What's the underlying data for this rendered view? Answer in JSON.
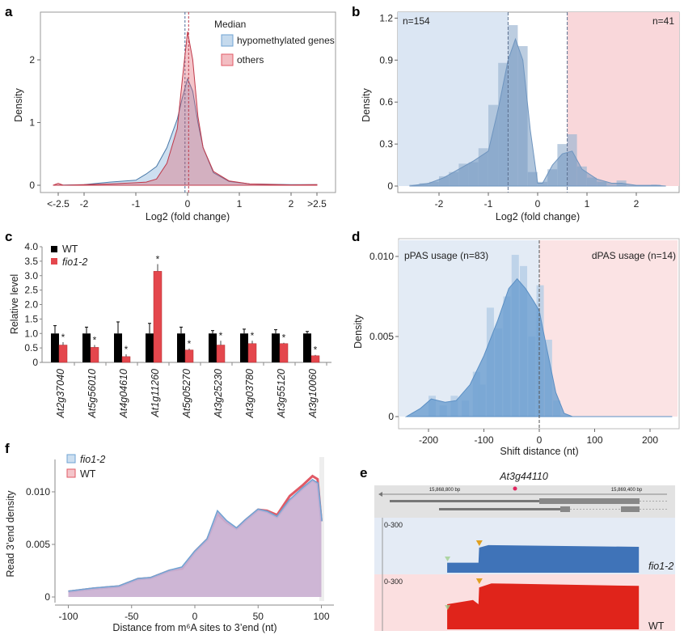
{
  "panel_labels": {
    "a": "a",
    "b": "b",
    "c": "c",
    "d": "d",
    "e": "e",
    "f": "f"
  },
  "colors": {
    "blue": "#6fa3d3",
    "red": "#e05a66",
    "purple": "#c9aed0",
    "blue_region": "#dbe6f3",
    "pink_region": "#f9d7da",
    "wt_bar": "#000000",
    "fio_bar": "#e4474d",
    "track_blue": "#3f73b8",
    "track_red": "#e0241b"
  },
  "chart_data": [
    {
      "id": "a",
      "type": "area",
      "xlabel": "Log2 (fold change)",
      "ylabel": "Density",
      "xticks": [
        "<-2.5",
        "-2",
        "-1",
        "0",
        "1",
        "2",
        ">2.5"
      ],
      "xtick_values": [
        -2.5,
        -2,
        -1,
        0,
        1,
        2,
        2.5
      ],
      "yticks": [
        "0",
        "1",
        "2"
      ],
      "ylim": [
        0,
        2.7
      ],
      "xlim": [
        -2.7,
        2.8
      ],
      "legend": {
        "title": "Median",
        "position": "top-right",
        "entries": [
          "hypomethylated genes",
          "others"
        ]
      },
      "series": [
        {
          "name": "hypomethylated genes",
          "color": "#6fa3d3",
          "median": -0.05,
          "points": [
            [
              -2.6,
              0
            ],
            [
              -2,
              0.01
            ],
            [
              -1.5,
              0.05
            ],
            [
              -1,
              0.08
            ],
            [
              -0.8,
              0.18
            ],
            [
              -0.6,
              0.3
            ],
            [
              -0.4,
              0.6
            ],
            [
              -0.2,
              1.05
            ],
            [
              -0.1,
              1.4
            ],
            [
              0,
              1.7
            ],
            [
              0.1,
              1.5
            ],
            [
              0.2,
              1.0
            ],
            [
              0.3,
              0.6
            ],
            [
              0.5,
              0.2
            ],
            [
              0.8,
              0.06
            ],
            [
              1.2,
              0.02
            ],
            [
              2,
              0.01
            ],
            [
              2.5,
              0.01
            ]
          ]
        },
        {
          "name": "others",
          "color": "#e05a66",
          "median": 0.02,
          "points": [
            [
              -2.6,
              0
            ],
            [
              -2.5,
              0.03
            ],
            [
              -2.4,
              0
            ],
            [
              -1.5,
              0.02
            ],
            [
              -1,
              0.04
            ],
            [
              -0.8,
              0.05
            ],
            [
              -0.6,
              0.1
            ],
            [
              -0.4,
              0.35
            ],
            [
              -0.2,
              0.9
            ],
            [
              -0.1,
              1.7
            ],
            [
              0,
              2.45
            ],
            [
              0.1,
              2.0
            ],
            [
              0.2,
              1.1
            ],
            [
              0.3,
              0.6
            ],
            [
              0.5,
              0.22
            ],
            [
              0.8,
              0.07
            ],
            [
              1.2,
              0.02
            ],
            [
              2,
              0.005
            ],
            [
              2.5,
              0.01
            ]
          ]
        }
      ]
    },
    {
      "id": "b",
      "type": "area",
      "xlabel": "Log2 (fold change)",
      "ylabel": "Density",
      "xticks": [
        "-2",
        "-1",
        "0",
        "1",
        "2"
      ],
      "xtick_values": [
        -2,
        -1,
        0,
        1,
        2
      ],
      "yticks": [
        "0",
        "0.3",
        "0.6",
        "0.9",
        "1.2"
      ],
      "ytick_values": [
        0,
        0.3,
        0.6,
        0.9,
        1.2
      ],
      "ylim": [
        0,
        1.25
      ],
      "xlim": [
        -2.85,
        2.85
      ],
      "thresholds": [
        -0.6,
        0.6
      ],
      "annotations": [
        "n=154",
        "n=41"
      ],
      "histogram": [
        [
          -2.5,
          0.01
        ],
        [
          -2.3,
          0.02
        ],
        [
          -2.1,
          0.03
        ],
        [
          -1.9,
          0.07
        ],
        [
          -1.7,
          0.1
        ],
        [
          -1.5,
          0.16
        ],
        [
          -1.3,
          0.17
        ],
        [
          -1.1,
          0.27
        ],
        [
          -0.9,
          0.58
        ],
        [
          -0.7,
          0.88
        ],
        [
          -0.5,
          1.15
        ],
        [
          -0.3,
          1.0
        ],
        [
          -0.1,
          0.1
        ],
        [
          0.1,
          0.03
        ],
        [
          0.3,
          0.12
        ],
        [
          0.5,
          0.3
        ],
        [
          0.7,
          0.37
        ],
        [
          0.9,
          0.14
        ],
        [
          1.1,
          0.06
        ],
        [
          1.3,
          0.03
        ],
        [
          1.7,
          0.04
        ],
        [
          2.4,
          0.01
        ]
      ],
      "density": [
        [
          -2.6,
          0
        ],
        [
          -2.2,
          0.02
        ],
        [
          -1.9,
          0.06
        ],
        [
          -1.6,
          0.12
        ],
        [
          -1.3,
          0.18
        ],
        [
          -1.0,
          0.25
        ],
        [
          -0.8,
          0.55
        ],
        [
          -0.6,
          0.9
        ],
        [
          -0.45,
          1.05
        ],
        [
          -0.3,
          0.9
        ],
        [
          -0.15,
          0.4
        ],
        [
          0,
          0.02
        ],
        [
          0.1,
          0.02
        ],
        [
          0.3,
          0.15
        ],
        [
          0.5,
          0.23
        ],
        [
          0.7,
          0.25
        ],
        [
          0.9,
          0.12
        ],
        [
          1.2,
          0.05
        ],
        [
          1.5,
          0.02
        ],
        [
          1.7,
          0.02
        ],
        [
          2,
          0.005
        ],
        [
          2.4,
          0.005
        ],
        [
          2.6,
          0
        ]
      ]
    },
    {
      "id": "c",
      "type": "bar",
      "ylabel": "Relative level",
      "yticks": [
        "0",
        "0.5",
        "1.0",
        "1.5",
        "2.0",
        "2.5",
        "3.0",
        "3.5",
        "4.0"
      ],
      "ylim": [
        0,
        4
      ],
      "categories": [
        "At2g37040",
        "At5g56010",
        "At4g04610",
        "At1g11260",
        "At5g05270",
        "At3g25230",
        "At3g03780",
        "At3g55120",
        "At3g10060"
      ],
      "legend": {
        "position": "top-left"
      },
      "series": [
        {
          "name": "WT",
          "values": [
            1,
            1,
            1,
            1,
            1,
            1,
            1,
            1,
            1
          ],
          "errors": [
            0.27,
            0.22,
            0.4,
            0.35,
            0.22,
            0.1,
            0.15,
            0.13,
            0.07
          ]
        },
        {
          "name": "fio1-2",
          "values": [
            0.6,
            0.52,
            0.2,
            3.15,
            0.43,
            0.6,
            0.65,
            0.65,
            0.23
          ],
          "errors": [
            0.1,
            0.08,
            0.08,
            0.25,
            0.05,
            0.15,
            0.1,
            0.03,
            0.03
          ],
          "significance": [
            "*",
            "*",
            "*",
            "*",
            "*",
            "*",
            "*",
            "*",
            "*"
          ]
        }
      ]
    },
    {
      "id": "d",
      "type": "area",
      "xlabel": "Shift distance (nt)",
      "ylabel": "Density",
      "xticks": [
        "-200",
        "-100",
        "0",
        "100",
        "200"
      ],
      "xtick_values": [
        -200,
        -100,
        0,
        100,
        200
      ],
      "yticks": [
        "0",
        "0.005",
        "0.010"
      ],
      "ytick_values": [
        0,
        0.005,
        0.01
      ],
      "ylim": [
        0,
        0.011
      ],
      "xlim": [
        -265,
        265
      ],
      "threshold": 0,
      "annotations": [
        "pPAS usage (n=83)",
        "dPAS usage (n=14)"
      ],
      "histogram": [
        [
          -195,
          0.0013
        ],
        [
          -175,
          0.0007
        ],
        [
          -155,
          0.0013
        ],
        [
          -135,
          0.001
        ],
        [
          -115,
          0.0028
        ],
        [
          -105,
          0.002
        ],
        [
          -90,
          0.0068
        ],
        [
          -75,
          0.0055
        ],
        [
          -60,
          0.0075
        ],
        [
          -45,
          0.0101
        ],
        [
          -30,
          0.0094
        ],
        [
          -15,
          0.005
        ],
        [
          0,
          0.0082
        ],
        [
          15,
          0.0048
        ],
        [
          30,
          0.001
        ]
      ],
      "density": [
        [
          -240,
          0
        ],
        [
          -215,
          0.0005
        ],
        [
          -195,
          0.0011
        ],
        [
          -170,
          0.0009
        ],
        [
          -150,
          0.001
        ],
        [
          -125,
          0.002
        ],
        [
          -100,
          0.0038
        ],
        [
          -75,
          0.006
        ],
        [
          -55,
          0.008
        ],
        [
          -40,
          0.0086
        ],
        [
          -25,
          0.008
        ],
        [
          -10,
          0.0072
        ],
        [
          0,
          0.0066
        ],
        [
          15,
          0.004
        ],
        [
          30,
          0.0015
        ],
        [
          45,
          0.0002
        ],
        [
          60,
          0
        ],
        [
          240,
          0
        ]
      ]
    },
    {
      "id": "e",
      "type": "area",
      "title": "At3g44110",
      "coordinates": [
        "15,868,800 bp",
        "15,869,400 bp"
      ],
      "track_scale": "0-300",
      "tracks": [
        {
          "name": "fio1-2",
          "color": "#3f73b8",
          "coverage": [
            [
              15868816,
              60
            ],
            [
              15868918,
              60
            ],
            [
              15868920,
              150
            ],
            [
              15868950,
              165
            ],
            [
              15869440,
              155
            ]
          ]
        },
        {
          "name": "WT",
          "color": "#e0241b",
          "coverage": [
            [
              15868816,
              150
            ],
            [
              15868900,
              175
            ],
            [
              15868918,
              150
            ],
            [
              15868920,
              250
            ],
            [
              15868960,
              275
            ],
            [
              15869440,
              260
            ]
          ]
        }
      ]
    },
    {
      "id": "f",
      "type": "area",
      "xlabel": "Distance from m⁶A sites to 3’end (nt)",
      "ylabel": "Read 3’end density",
      "xticks": [
        "-100",
        "-50",
        "0",
        "50",
        "100"
      ],
      "xtick_values": [
        -100,
        -50,
        0,
        50,
        100
      ],
      "yticks": [
        "0",
        "0.005",
        "0.010"
      ],
      "ytick_values": [
        0,
        0.005,
        0.01
      ],
      "ylim": [
        0,
        0.0125
      ],
      "xlim": [
        -110,
        105
      ],
      "legend": {
        "position": "top-left"
      },
      "series": [
        {
          "name": "fio1-2",
          "color": "#6fa3d3",
          "points": [
            [
              -100,
              0.0005
            ],
            [
              -80,
              0.0008
            ],
            [
              -60,
              0.001
            ],
            [
              -45,
              0.0017
            ],
            [
              -35,
              0.0018
            ],
            [
              -20,
              0.0025
            ],
            [
              -10,
              0.0028
            ],
            [
              0,
              0.0043
            ],
            [
              10,
              0.0055
            ],
            [
              18,
              0.0081
            ],
            [
              25,
              0.0072
            ],
            [
              33,
              0.0065
            ],
            [
              40,
              0.0073
            ],
            [
              50,
              0.0083
            ],
            [
              57,
              0.0081
            ],
            [
              65,
              0.0076
            ],
            [
              75,
              0.0092
            ],
            [
              85,
              0.0103
            ],
            [
              93,
              0.0111
            ],
            [
              97,
              0.0108
            ],
            [
              100,
              0.0072
            ]
          ]
        },
        {
          "name": "WT",
          "color": "#e05a66",
          "points": [
            [
              -100,
              0.0005
            ],
            [
              -80,
              0.0008
            ],
            [
              -60,
              0.001
            ],
            [
              -45,
              0.0017
            ],
            [
              -35,
              0.0018
            ],
            [
              -20,
              0.0025
            ],
            [
              -10,
              0.0027
            ],
            [
              0,
              0.0043
            ],
            [
              10,
              0.0055
            ],
            [
              18,
              0.0079
            ],
            [
              25,
              0.0071
            ],
            [
              33,
              0.0065
            ],
            [
              40,
              0.0073
            ],
            [
              50,
              0.0083
            ],
            [
              57,
              0.0082
            ],
            [
              65,
              0.0078
            ],
            [
              75,
              0.0096
            ],
            [
              85,
              0.0106
            ],
            [
              93,
              0.0115
            ],
            [
              97,
              0.0112
            ],
            [
              100,
              0.0072
            ]
          ]
        }
      ]
    }
  ]
}
